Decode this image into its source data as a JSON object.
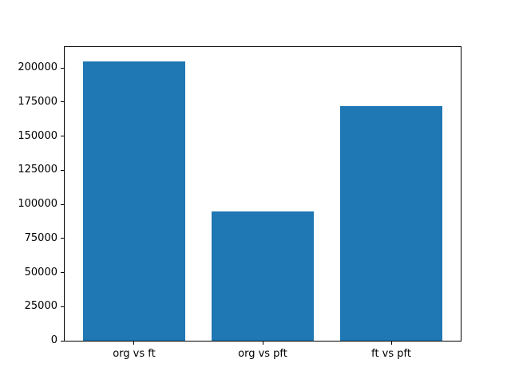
{
  "figure": {
    "background": "#ffffff",
    "spine_color": "#000000",
    "text_color": "#000000"
  },
  "chart_data": {
    "type": "bar",
    "categories": [
      "org vs ft",
      "org vs pft",
      "ft vs pft"
    ],
    "values": [
      205000,
      95000,
      172000
    ],
    "title": "",
    "xlabel": "",
    "ylabel": "",
    "ylim": [
      0,
      215250
    ],
    "yticks": [
      0,
      25000,
      50000,
      75000,
      100000,
      125000,
      150000,
      175000,
      200000
    ],
    "bar_color": "#1f77b4",
    "bar_width_fraction": 0.8,
    "x_axis_span": 3.08,
    "x_axis_min": -0.54,
    "grid": false,
    "legend": null
  }
}
